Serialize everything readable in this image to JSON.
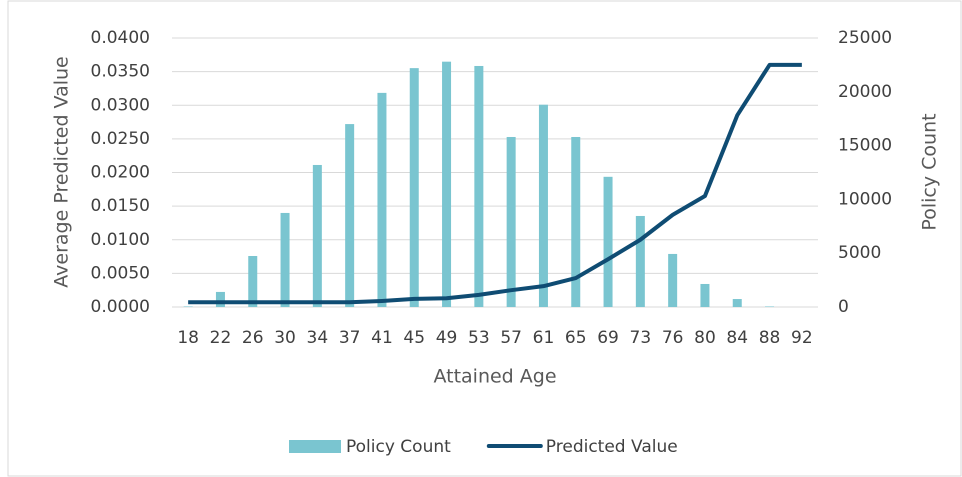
{
  "chart_data": {
    "type": "combo",
    "x_label": "Attained Age",
    "y_label": "Average Predicted Value",
    "y2_label": "Policy Count",
    "categories": [
      18,
      22,
      26,
      30,
      34,
      37,
      41,
      45,
      49,
      53,
      57,
      61,
      65,
      69,
      73,
      76,
      80,
      84,
      88,
      92
    ],
    "series": [
      {
        "name": "Policy Count",
        "type": "bar",
        "axis": "y2",
        "color": "#7ac5d0",
        "values": [
          50,
          1400,
          4740,
          8740,
          13200,
          17000,
          19900,
          22200,
          22800,
          22400,
          15800,
          18800,
          15800,
          12100,
          8460,
          4930,
          2140,
          740,
          50,
          0
        ]
      },
      {
        "name": "Predicted Value",
        "type": "line",
        "axis": "y",
        "color": "#0f4c73",
        "values": [
          0.0007,
          0.0007,
          0.0007,
          0.0007,
          0.0007,
          0.0007,
          0.0009,
          0.0012,
          0.0013,
          0.0018,
          0.0025,
          0.0031,
          0.0043,
          0.0071,
          0.01,
          0.0137,
          0.0165,
          0.0285,
          0.036,
          0.036
        ]
      }
    ],
    "ylim": [
      0,
      0.04
    ],
    "yticks": [
      {
        "value": 0,
        "label": "0.0000"
      },
      {
        "value": 0.005,
        "label": "0.0050"
      },
      {
        "value": 0.01,
        "label": "0.0100"
      },
      {
        "value": 0.015,
        "label": "0.0150"
      },
      {
        "value": 0.02,
        "label": "0.0200"
      },
      {
        "value": 0.025,
        "label": "0.0250"
      },
      {
        "value": 0.03,
        "label": "0.0300"
      },
      {
        "value": 0.035,
        "label": "0.0350"
      },
      {
        "value": 0.04,
        "label": "0.0400"
      }
    ],
    "y2lim": [
      0,
      25000
    ],
    "y2ticks": [
      0,
      5000,
      10000,
      15000,
      20000,
      25000
    ],
    "grid": true,
    "legend": "bottom"
  }
}
